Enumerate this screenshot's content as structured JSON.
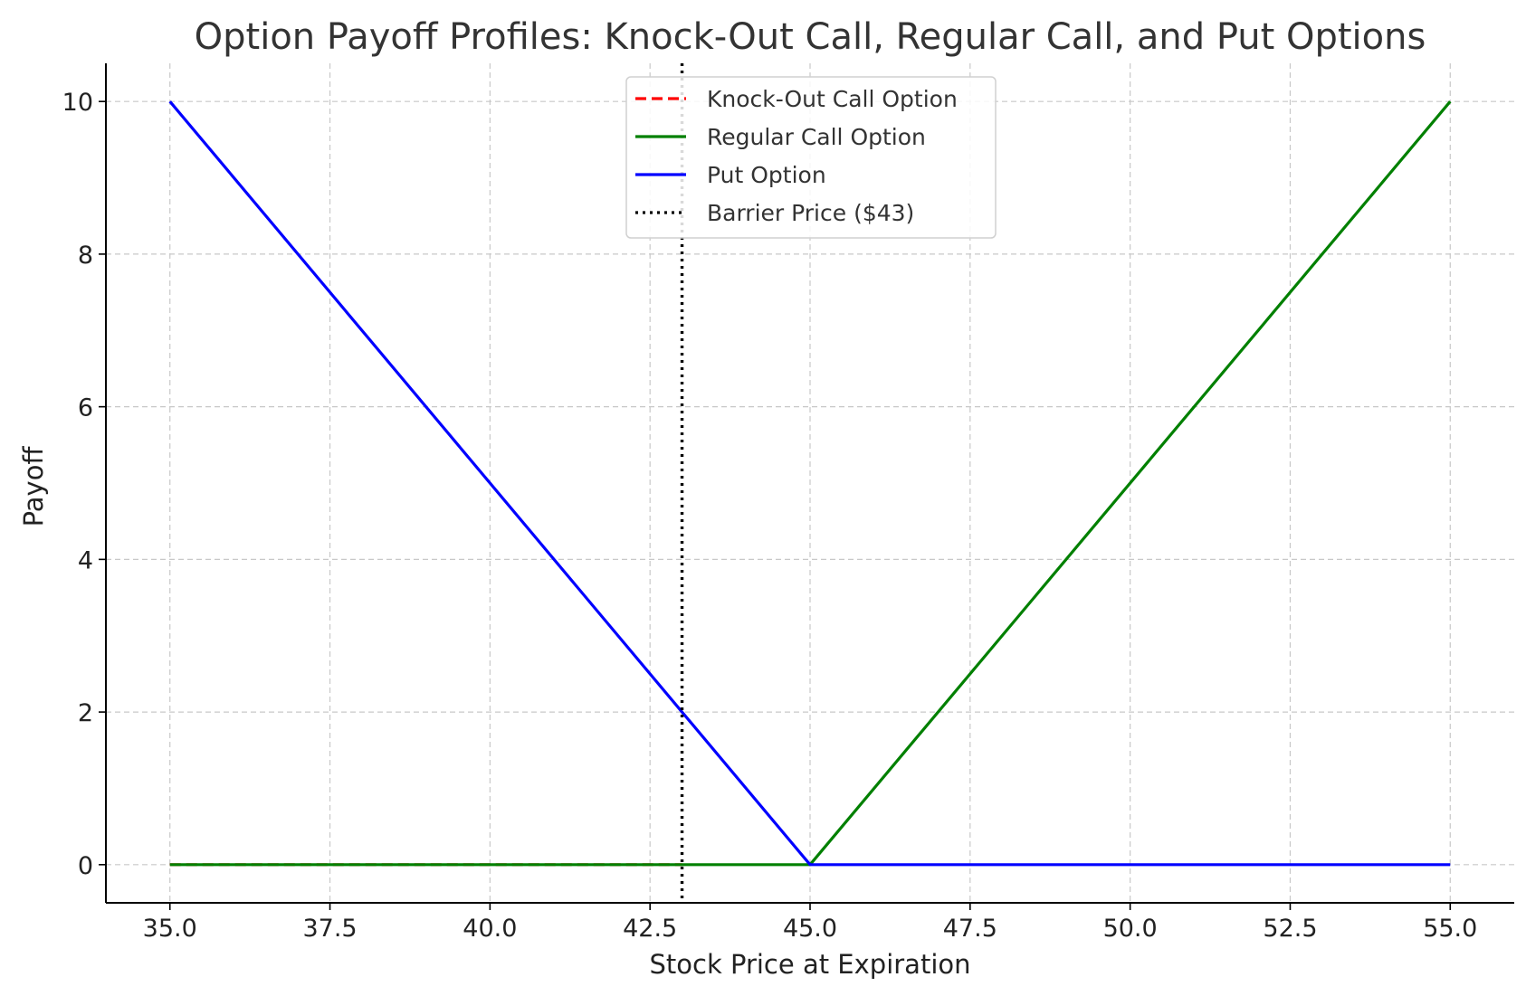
{
  "chart_data": {
    "type": "line",
    "title": "Option Payoff Profiles: Knock-Out Call, Regular Call, and Put Options",
    "xlabel": "Stock Price at Expiration",
    "ylabel": "Payoff",
    "xlim": [
      34.0,
      56.0
    ],
    "ylim": [
      -0.5,
      10.5
    ],
    "x_ticks": [
      35.0,
      37.5,
      40.0,
      42.5,
      45.0,
      47.5,
      50.0,
      52.5,
      55.0
    ],
    "x_tick_labels": [
      "35.0",
      "37.5",
      "40.0",
      "42.5",
      "45.0",
      "47.5",
      "50.0",
      "52.5",
      "55.0"
    ],
    "y_ticks": [
      0,
      2,
      4,
      6,
      8,
      10
    ],
    "y_tick_labels": [
      "0",
      "2",
      "4",
      "6",
      "8",
      "10"
    ],
    "grid": true,
    "legend_position": "top-center",
    "series": [
      {
        "name": "Knock-Out Call Option",
        "color": "#ff0000",
        "style": "dashed",
        "x": [
          35.0,
          43.0
        ],
        "y": [
          0,
          0
        ]
      },
      {
        "name": "Regular Call Option",
        "color": "#008000",
        "style": "solid",
        "x": [
          35.0,
          45.0,
          55.0
        ],
        "y": [
          0,
          0,
          10
        ]
      },
      {
        "name": "Put Option",
        "color": "#0000ff",
        "style": "solid",
        "x": [
          35.0,
          45.0,
          55.0
        ],
        "y": [
          10,
          0,
          0
        ]
      }
    ],
    "vlines": [
      {
        "name": "Barrier Price ($43)",
        "x": 43.0,
        "color": "#000000",
        "style": "dotted"
      }
    ]
  }
}
